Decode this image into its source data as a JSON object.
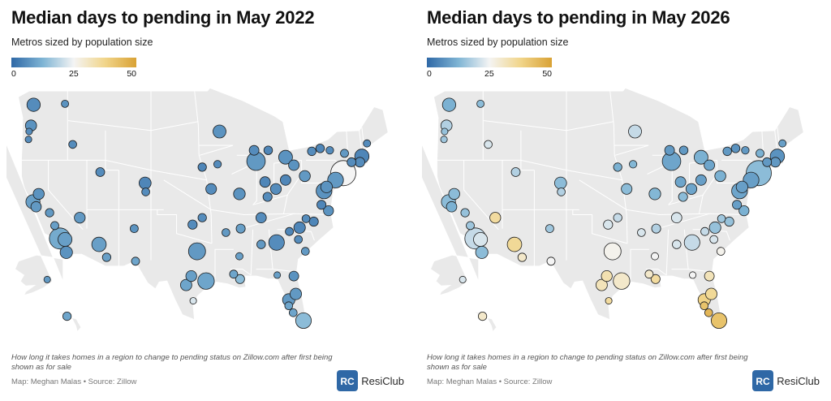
{
  "panels": [
    {
      "title": "Median days to pending in May 2022",
      "subtitle": "Metros sized by population size",
      "legend": {
        "min_label": "0",
        "mid_label": "25",
        "max_label": "50"
      },
      "note": "How long it takes homes in a region to change to pending status on Zillow.com after first being shown as for sale",
      "credit": "Map: Meghan Malas • Source: Zillow",
      "logo_text": "ResiClub",
      "logo_letters": "RC"
    },
    {
      "title": "Median days to pending in May 2026",
      "subtitle": "Metros sized by population size",
      "legend": {
        "min_label": "0",
        "mid_label": "25",
        "max_label": "50"
      },
      "note": "How long it takes homes in a region to change to pending status on Zillow.com after first being shown as for sale",
      "credit": "Map: Meghan Malas • Source: Zillow",
      "logo_text": "ResiClub",
      "logo_letters": "RC"
    }
  ],
  "colors": {
    "scale_low": "#2f68a6",
    "scale_lowmid": "#7eb4d4",
    "scale_mid": "#f4f4f4",
    "scale_highmid": "#f1d58a",
    "scale_high": "#d9a235",
    "land": "#e9e9e9",
    "borders": "#ffffff",
    "marker_stroke": "#1d1d1d",
    "logo_blue": "#2f68a6"
  },
  "metros": [
    {
      "lon": -122.3,
      "lat": 47.6,
      "p": 4.0,
      "d22": 6,
      "d26": 12
    },
    {
      "lon": -122.7,
      "lat": 45.5,
      "p": 2.5,
      "d22": 7,
      "d26": 18
    },
    {
      "lon": -117.4,
      "lat": 47.7,
      "p": 0.6,
      "d22": 7,
      "d26": 14
    },
    {
      "lon": -123.0,
      "lat": 44.9,
      "p": 0.4,
      "d22": 6,
      "d26": 15
    },
    {
      "lon": -123.1,
      "lat": 44.1,
      "p": 0.4,
      "d22": 6,
      "d26": 16
    },
    {
      "lon": -122.4,
      "lat": 37.8,
      "p": 4.7,
      "d22": 9,
      "d26": 14
    },
    {
      "lon": -121.9,
      "lat": 37.3,
      "p": 2.0,
      "d22": 8,
      "d26": 12
    },
    {
      "lon": -121.5,
      "lat": 38.6,
      "p": 2.4,
      "d22": 7,
      "d26": 14
    },
    {
      "lon": -119.8,
      "lat": 36.7,
      "p": 1.0,
      "d22": 8,
      "d26": 15
    },
    {
      "lon": -119.0,
      "lat": 35.4,
      "p": 0.9,
      "d22": 9,
      "d26": 16
    },
    {
      "lon": -118.2,
      "lat": 34.1,
      "p": 13.0,
      "d22": 11,
      "d26": 20
    },
    {
      "lon": -117.4,
      "lat": 34.0,
      "p": 4.6,
      "d22": 9,
      "d26": 22
    },
    {
      "lon": -117.2,
      "lat": 32.7,
      "p": 3.3,
      "d22": 7,
      "d26": 14
    },
    {
      "lon": -115.1,
      "lat": 36.2,
      "p": 2.3,
      "d22": 8,
      "d26": 35
    },
    {
      "lon": -112.1,
      "lat": 33.5,
      "p": 5.0,
      "d22": 9,
      "d26": 36
    },
    {
      "lon": -110.9,
      "lat": 32.2,
      "p": 1.0,
      "d22": 9,
      "d26": 30
    },
    {
      "lon": -111.9,
      "lat": 40.8,
      "p": 1.2,
      "d22": 6,
      "d26": 18
    },
    {
      "lon": -116.2,
      "lat": 43.6,
      "p": 0.8,
      "d22": 6,
      "d26": 22
    },
    {
      "lon": -104.9,
      "lat": 39.7,
      "p": 3.0,
      "d22": 5,
      "d26": 14
    },
    {
      "lon": -104.8,
      "lat": 38.8,
      "p": 0.8,
      "d22": 6,
      "d26": 18
    },
    {
      "lon": -106.6,
      "lat": 35.1,
      "p": 0.9,
      "d22": 7,
      "d26": 16
    },
    {
      "lon": -106.4,
      "lat": 31.8,
      "p": 0.9,
      "d22": 10,
      "d26": 25
    },
    {
      "lon": -96.8,
      "lat": 32.8,
      "p": 7.6,
      "d22": 8,
      "d26": 26
    },
    {
      "lon": -95.4,
      "lat": 29.8,
      "p": 7.1,
      "d22": 10,
      "d26": 30
    },
    {
      "lon": -98.5,
      "lat": 29.4,
      "p": 2.6,
      "d22": 10,
      "d26": 32
    },
    {
      "lon": -97.7,
      "lat": 30.3,
      "p": 2.3,
      "d22": 9,
      "d26": 33
    },
    {
      "lon": -97.4,
      "lat": 27.8,
      "p": 0.4,
      "d22": 22,
      "d26": 35
    },
    {
      "lon": -97.5,
      "lat": 35.5,
      "p": 1.4,
      "d22": 6,
      "d26": 22
    },
    {
      "lon": -96.0,
      "lat": 36.2,
      "p": 1.0,
      "d22": 6,
      "d26": 20
    },
    {
      "lon": -94.6,
      "lat": 39.1,
      "p": 2.2,
      "d22": 6,
      "d26": 14
    },
    {
      "lon": -90.2,
      "lat": 38.6,
      "p": 2.8,
      "d22": 7,
      "d26": 13
    },
    {
      "lon": -93.3,
      "lat": 44.9,
      "p": 3.7,
      "d22": 7,
      "d26": 20
    },
    {
      "lon": -96.0,
      "lat": 41.3,
      "p": 1.0,
      "d22": 5,
      "d26": 12
    },
    {
      "lon": -93.6,
      "lat": 41.6,
      "p": 0.7,
      "d22": 6,
      "d26": 13
    },
    {
      "lon": -87.6,
      "lat": 41.9,
      "p": 9.5,
      "d22": 8,
      "d26": 10
    },
    {
      "lon": -87.9,
      "lat": 43.0,
      "p": 1.6,
      "d22": 6,
      "d26": 8
    },
    {
      "lon": -86.2,
      "lat": 39.8,
      "p": 2.1,
      "d22": 5,
      "d26": 10
    },
    {
      "lon": -84.5,
      "lat": 39.1,
      "p": 2.3,
      "d22": 6,
      "d26": 10
    },
    {
      "lon": -83.0,
      "lat": 40.0,
      "p": 2.1,
      "d22": 5,
      "d26": 9
    },
    {
      "lon": -81.7,
      "lat": 41.5,
      "p": 2.1,
      "d22": 7,
      "d26": 10
    },
    {
      "lon": -83.0,
      "lat": 42.3,
      "p": 4.4,
      "d22": 7,
      "d26": 12
    },
    {
      "lon": -85.7,
      "lat": 43.0,
      "p": 1.1,
      "d22": 5,
      "d26": 8
    },
    {
      "lon": -80.0,
      "lat": 40.4,
      "p": 2.4,
      "d22": 8,
      "d26": 12
    },
    {
      "lon": -85.8,
      "lat": 38.3,
      "p": 1.3,
      "d22": 6,
      "d26": 14
    },
    {
      "lon": -86.8,
      "lat": 36.2,
      "p": 2.0,
      "d22": 6,
      "d26": 22
    },
    {
      "lon": -90.0,
      "lat": 35.1,
      "p": 1.3,
      "d22": 9,
      "d26": 18
    },
    {
      "lon": -84.4,
      "lat": 33.7,
      "p": 6.1,
      "d22": 6,
      "d26": 20
    },
    {
      "lon": -86.8,
      "lat": 33.5,
      "p": 1.1,
      "d22": 8,
      "d26": 22
    },
    {
      "lon": -90.1,
      "lat": 30.0,
      "p": 1.3,
      "d22": 14,
      "d26": 35
    },
    {
      "lon": -91.1,
      "lat": 30.5,
      "p": 0.9,
      "d22": 10,
      "d26": 30
    },
    {
      "lon": -92.3,
      "lat": 34.7,
      "p": 0.8,
      "d22": 8,
      "d26": 22
    },
    {
      "lon": -90.2,
      "lat": 32.3,
      "p": 0.6,
      "d22": 9,
      "d26": 25
    },
    {
      "lon": -82.5,
      "lat": 27.9,
      "p": 3.2,
      "d22": 8,
      "d26": 38
    },
    {
      "lon": -81.4,
      "lat": 28.5,
      "p": 2.7,
      "d22": 8,
      "d26": 36
    },
    {
      "lon": -80.2,
      "lat": 25.8,
      "p": 6.1,
      "d22": 14,
      "d26": 42
    },
    {
      "lon": -81.7,
      "lat": 30.3,
      "p": 1.6,
      "d22": 7,
      "d26": 32
    },
    {
      "lon": -81.8,
      "lat": 26.6,
      "p": 0.8,
      "d22": 10,
      "d26": 45
    },
    {
      "lon": -82.5,
      "lat": 27.3,
      "p": 0.8,
      "d22": 10,
      "d26": 42
    },
    {
      "lon": -84.3,
      "lat": 30.4,
      "p": 0.4,
      "d22": 9,
      "d26": 25
    },
    {
      "lon": -80.8,
      "lat": 35.2,
      "p": 2.7,
      "d22": 5,
      "d26": 15
    },
    {
      "lon": -78.6,
      "lat": 35.8,
      "p": 1.4,
      "d22": 5,
      "d26": 15
    },
    {
      "lon": -79.8,
      "lat": 36.1,
      "p": 0.8,
      "d22": 6,
      "d26": 16
    },
    {
      "lon": -79.9,
      "lat": 32.8,
      "p": 0.8,
      "d22": 8,
      "d26": 26
    },
    {
      "lon": -81.0,
      "lat": 34.0,
      "p": 0.8,
      "d22": 6,
      "d26": 22
    },
    {
      "lon": -82.4,
      "lat": 34.8,
      "p": 0.9,
      "d22": 5,
      "d26": 20
    },
    {
      "lon": -77.4,
      "lat": 37.5,
      "p": 1.3,
      "d22": 5,
      "d26": 9
    },
    {
      "lon": -76.3,
      "lat": 36.9,
      "p": 1.8,
      "d22": 7,
      "d26": 12
    },
    {
      "lon": -77.0,
      "lat": 38.9,
      "p": 6.3,
      "d22": 7,
      "d26": 10
    },
    {
      "lon": -76.6,
      "lat": 39.3,
      "p": 2.8,
      "d22": 7,
      "d26": 9
    },
    {
      "lon": -75.2,
      "lat": 40.0,
      "p": 6.2,
      "d22": 8,
      "d26": 9
    },
    {
      "lon": -74.0,
      "lat": 40.7,
      "p": 19.8,
      "d22": 25,
      "d26": 14
    },
    {
      "lon": -71.1,
      "lat": 42.4,
      "p": 4.9,
      "d22": 5,
      "d26": 7
    },
    {
      "lon": -71.4,
      "lat": 41.8,
      "p": 1.6,
      "d22": 6,
      "d26": 8
    },
    {
      "lon": -72.7,
      "lat": 41.8,
      "p": 1.2,
      "d22": 6,
      "d26": 8
    },
    {
      "lon": -73.8,
      "lat": 42.7,
      "p": 0.9,
      "d22": 8,
      "d26": 12
    },
    {
      "lon": -78.9,
      "lat": 42.9,
      "p": 1.1,
      "d22": 6,
      "d26": 8
    },
    {
      "lon": -77.6,
      "lat": 43.2,
      "p": 1.1,
      "d22": 5,
      "d26": 7
    },
    {
      "lon": -76.1,
      "lat": 43.0,
      "p": 0.7,
      "d22": 6,
      "d26": 8
    },
    {
      "lon": -70.3,
      "lat": 43.7,
      "p": 0.6,
      "d22": 6,
      "d26": 9
    },
    {
      "lon": -157.9,
      "lat": 21.3,
      "p": 1.0,
      "d22": 10,
      "d26": 30
    },
    {
      "lon": -149.9,
      "lat": 61.2,
      "p": 0.4,
      "d22": 8,
      "d26": 22
    }
  ]
}
